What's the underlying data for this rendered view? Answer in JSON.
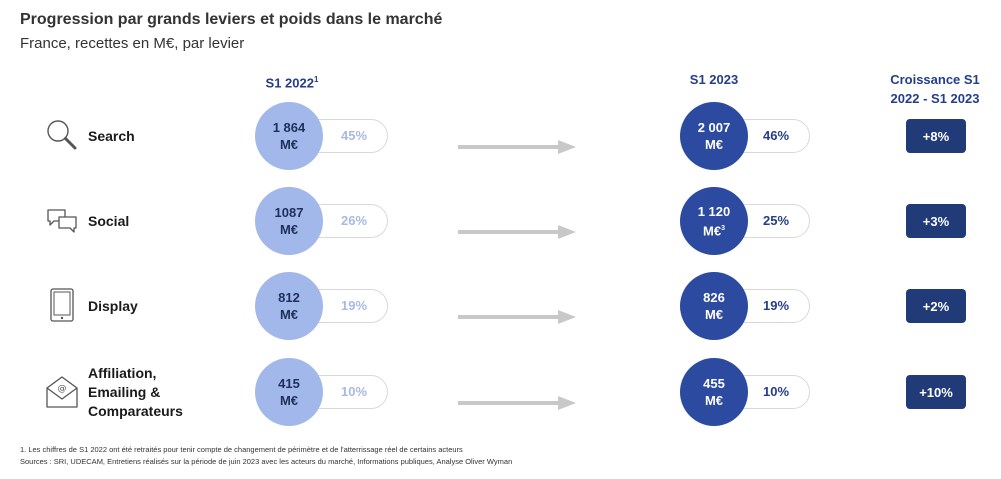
{
  "title": "Progression par grands leviers et poids dans le marché",
  "subtitle": "France, recettes en M€, par levier",
  "headers": {
    "col_2022": "S1 2022",
    "col_2022_note": "1",
    "col_2023": "S1 2023",
    "growth_line1": "Croissance S1",
    "growth_line2": "2022 - S1 2023"
  },
  "colors": {
    "circle_2022": "#a3b8ea",
    "circle_2023": "#2b4aa0",
    "growth_badge": "#213a78",
    "arrow": "#c8c8c8",
    "header": "#243e8c"
  },
  "chart_data": {
    "type": "table",
    "columns": [
      "S1 2022",
      "S1 2023",
      "Croissance S1 2022 - S1 2023"
    ],
    "unit": "M€",
    "rows": [
      {
        "label_lines": [
          "Search"
        ],
        "icon": "magnifier-icon",
        "value_2022": "1 864",
        "unit_2022": "M€",
        "unit_2022_note": "",
        "share_2022": "45%",
        "value_2023": "2 007",
        "unit_2023": "M€",
        "unit_2023_note": "",
        "share_2023": "46%",
        "growth": "+8%"
      },
      {
        "label_lines": [
          "Social"
        ],
        "icon": "chat-bubbles-icon",
        "value_2022": "1087",
        "unit_2022": "M€",
        "unit_2022_note": "",
        "share_2022": "26%",
        "value_2023": "1 120",
        "unit_2023": "M€",
        "unit_2023_note": "3",
        "share_2023": "25%",
        "growth": "+3%"
      },
      {
        "label_lines": [
          "Display"
        ],
        "icon": "tablet-icon",
        "value_2022": "812",
        "unit_2022": "M€",
        "unit_2022_note": "",
        "share_2022": "19%",
        "value_2023": "826",
        "unit_2023": "M€",
        "unit_2023_note": "",
        "share_2023": "19%",
        "growth": "+2%"
      },
      {
        "label_lines": [
          "Affiliation,",
          "Emailing &",
          "Comparateurs"
        ],
        "icon": "email-envelope-icon",
        "value_2022": "415",
        "unit_2022": "M€",
        "unit_2022_note": "",
        "share_2022": "10%",
        "value_2023": "455",
        "unit_2023": "M€",
        "unit_2023_note": "",
        "share_2023": "10%",
        "growth": "+10%"
      }
    ]
  },
  "footnotes": [
    "1. Les chiffres de S1 2022 ont été retraités pour tenir compte de changement de périmètre et de l'atterrissage réel de certains acteurs",
    "Sources : SRI, UDECAM, Entretiens réalisés sur la période de juin 2023 avec les acteurs du marché, Informations publiques, Analyse Oliver Wyman"
  ]
}
